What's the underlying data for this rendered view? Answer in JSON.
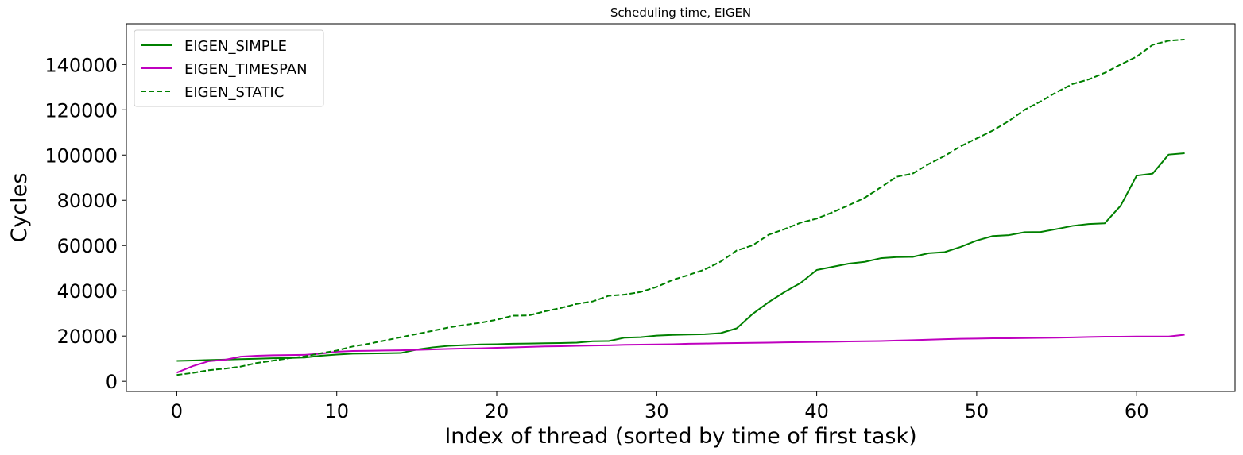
{
  "chart_data": {
    "type": "line",
    "title": "Scheduling time, EIGEN",
    "xlabel": "Index of thread (sorted by time of first task)",
    "ylabel": "Cycles",
    "xlim": [
      -3.15,
      66.15
    ],
    "ylim": [
      -4500,
      158000
    ],
    "xticks": [
      0,
      10,
      20,
      30,
      40,
      50,
      60
    ],
    "yticks": [
      0,
      20000,
      40000,
      60000,
      80000,
      100000,
      120000,
      140000
    ],
    "grid": false,
    "legend_position": "upper-left",
    "x": [
      0,
      1,
      2,
      3,
      4,
      5,
      6,
      7,
      8,
      9,
      10,
      11,
      12,
      13,
      14,
      15,
      16,
      17,
      18,
      19,
      20,
      21,
      22,
      23,
      24,
      25,
      26,
      27,
      28,
      29,
      30,
      31,
      32,
      33,
      34,
      35,
      36,
      37,
      38,
      39,
      40,
      41,
      42,
      43,
      44,
      45,
      46,
      47,
      48,
      49,
      50,
      51,
      52,
      53,
      54,
      55,
      56,
      57,
      58,
      59,
      60,
      61,
      62,
      63
    ],
    "series": [
      {
        "name": "EIGEN_SIMPLE",
        "color": "#008000",
        "style": "solid",
        "values": [
          9000,
          9200,
          9400,
          9600,
          9800,
          10000,
          10200,
          10300,
          10500,
          11300,
          11800,
          12200,
          12300,
          12400,
          12500,
          14000,
          15000,
          15700,
          16000,
          16300,
          16400,
          16600,
          16700,
          16800,
          16900,
          17100,
          17700,
          17800,
          19300,
          19500,
          20200,
          20500,
          20700,
          20800,
          21300,
          23400,
          29800,
          35000,
          39500,
          43500,
          49200,
          50600,
          52000,
          52800,
          54400,
          54900,
          55000,
          56600,
          57100,
          59400,
          62200,
          64200,
          64600,
          65900,
          66000,
          67300,
          68700,
          69500,
          69800,
          77600,
          90900,
          91800,
          100200,
          100800
        ]
      },
      {
        "name": "EIGEN_TIMESPAN",
        "color": "#bf00bf",
        "style": "solid",
        "values": [
          3800,
          6700,
          8900,
          9500,
          10900,
          11300,
          11500,
          11600,
          11700,
          12200,
          13100,
          13400,
          13500,
          13600,
          13700,
          13900,
          14100,
          14300,
          14500,
          14600,
          14800,
          15000,
          15200,
          15400,
          15500,
          15700,
          15800,
          15900,
          16100,
          16200,
          16300,
          16400,
          16600,
          16700,
          16800,
          16900,
          17000,
          17100,
          17200,
          17300,
          17400,
          17500,
          17600,
          17700,
          17800,
          18000,
          18200,
          18400,
          18600,
          18800,
          18900,
          19000,
          19000,
          19100,
          19200,
          19300,
          19400,
          19600,
          19700,
          19700,
          19800,
          19800,
          19800,
          20600
        ]
      },
      {
        "name": "EIGEN_STATIC",
        "color": "#008000",
        "style": "dashed",
        "values": [
          2800,
          3700,
          4900,
          5600,
          6500,
          8100,
          9100,
          10200,
          11000,
          12400,
          13600,
          15400,
          16600,
          18000,
          19500,
          20900,
          22300,
          23800,
          24900,
          25900,
          27200,
          29000,
          29100,
          30900,
          32400,
          34200,
          35300,
          37800,
          38300,
          39500,
          41700,
          44800,
          47000,
          49400,
          52900,
          57800,
          60100,
          64800,
          67300,
          70100,
          71900,
          74700,
          77800,
          81100,
          85700,
          90400,
          91800,
          96000,
          99600,
          103900,
          107300,
          110800,
          115000,
          120000,
          123700,
          127800,
          131400,
          133400,
          136300,
          140000,
          143500,
          148700,
          150500,
          151000
        ]
      }
    ]
  }
}
